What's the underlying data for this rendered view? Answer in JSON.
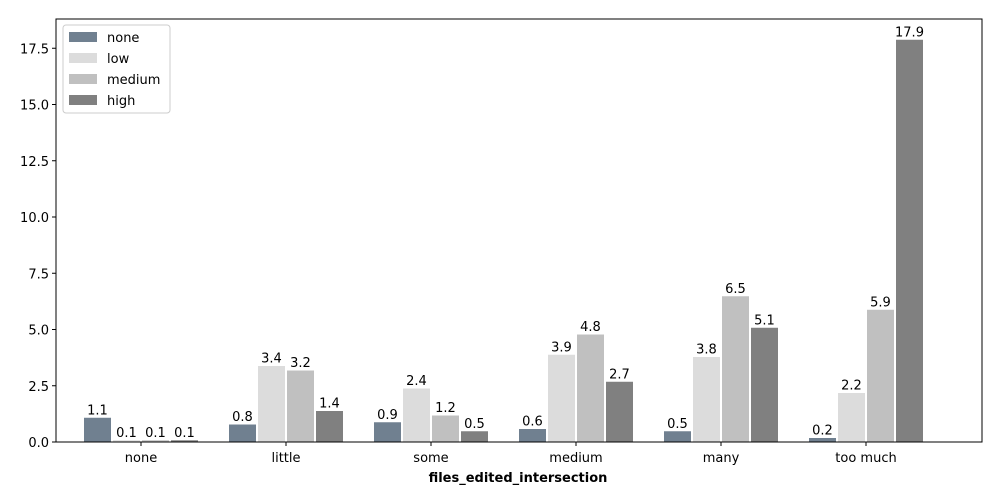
{
  "chart_data": {
    "type": "bar",
    "categories": [
      "none",
      "little",
      "some",
      "medium",
      "many",
      "too much"
    ],
    "series": [
      {
        "name": "none",
        "color": "#708090",
        "values": [
          1.1,
          0.8,
          0.9,
          0.6,
          0.5,
          0.2
        ],
        "labels": [
          "1.1",
          "0.8",
          "0.9",
          "0.6",
          "0.5",
          "0.2"
        ]
      },
      {
        "name": "low",
        "color": "#dcdcdc",
        "values": [
          0.1,
          3.4,
          2.4,
          3.9,
          3.8,
          2.2
        ],
        "labels": [
          "0.1",
          "3.4",
          "2.4",
          "3.9",
          "3.8",
          "2.2"
        ]
      },
      {
        "name": "medium",
        "color": "#c0c0c0",
        "values": [
          0.1,
          3.2,
          1.2,
          4.8,
          6.5,
          5.9
        ],
        "labels": [
          "0.1",
          "3.2",
          "1.2",
          "4.8",
          "6.5",
          "5.9"
        ]
      },
      {
        "name": "high",
        "color": "#808080",
        "values": [
          0.1,
          1.4,
          0.5,
          2.7,
          5.1,
          17.9
        ],
        "labels": [
          "0.1",
          "1.4",
          "0.5",
          "2.7",
          "5.1",
          "17.9"
        ]
      }
    ],
    "xlabel": "files_edited_intersection",
    "ylabel": "",
    "ylim": [
      0,
      18.8
    ],
    "yticks": [
      0.0,
      2.5,
      5.0,
      7.5,
      10.0,
      12.5,
      15.0,
      17.5
    ],
    "ytick_labels": [
      "0.0",
      "2.5",
      "5.0",
      "7.5",
      "10.0",
      "12.5",
      "15.0",
      "17.5"
    ],
    "grid": false,
    "legend_position": "top-left"
  }
}
